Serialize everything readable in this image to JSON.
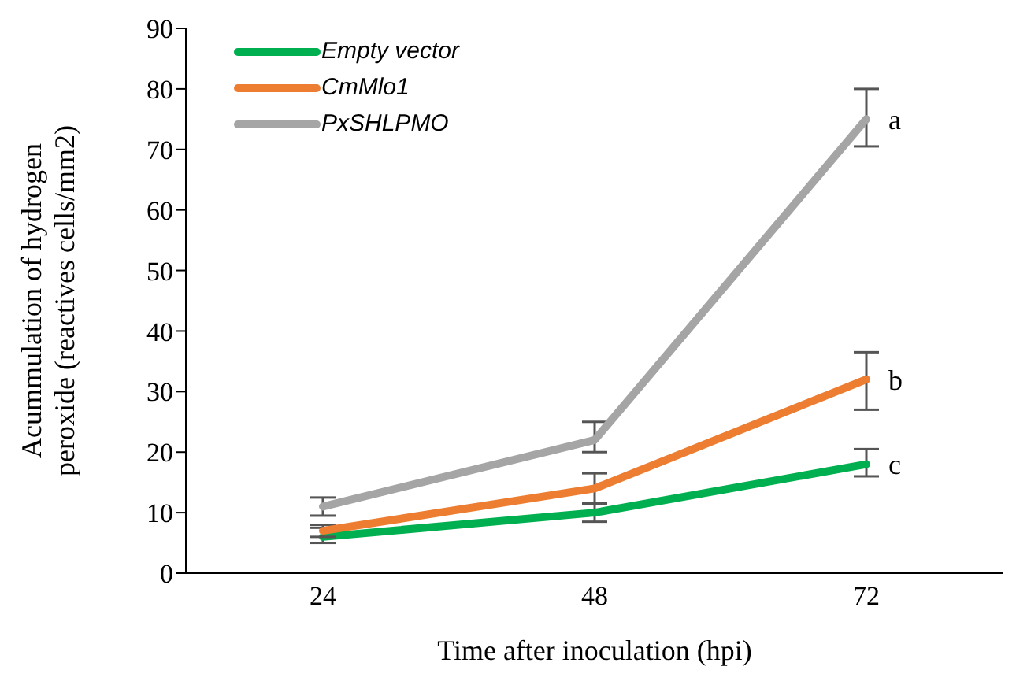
{
  "chart_data": {
    "type": "line",
    "xlabel": "Time after inoculation (hpi)",
    "ylabel": "Acummulation of hydrogen peroxide (reactives cells/mm2)",
    "categories": [
      "24",
      "48",
      "72"
    ],
    "series": [
      {
        "name": "Empty vector",
        "color": "#00b050",
        "values": [
          6,
          10,
          18
        ],
        "errors": [
          [
            5,
            7.5
          ],
          [
            8.5,
            11.5
          ],
          [
            16,
            20.5
          ]
        ]
      },
      {
        "name": "CmMlo1",
        "color": "#ed7d31",
        "values": [
          7,
          14,
          32
        ],
        "errors": [
          [
            6,
            8
          ],
          [
            11.5,
            16.5
          ],
          [
            27,
            36.5
          ]
        ]
      },
      {
        "name": "PxSHLPMO",
        "color": "#a5a5a5",
        "values": [
          11,
          22,
          75
        ],
        "errors": [
          [
            9.5,
            12.5
          ],
          [
            20,
            25
          ],
          [
            70.5,
            80
          ]
        ]
      }
    ],
    "ylim": [
      0,
      90
    ],
    "yticks": [
      0,
      10,
      20,
      30,
      40,
      50,
      60,
      70,
      80,
      90
    ],
    "grid": false,
    "legend": "top left",
    "marker": "none",
    "line_style": "solid",
    "annotations": [
      {
        "text": "a",
        "x": "72",
        "y": 75
      },
      {
        "text": "b",
        "x": "72",
        "y": 32
      },
      {
        "text": "c",
        "x": "72",
        "y": 18
      }
    ]
  }
}
